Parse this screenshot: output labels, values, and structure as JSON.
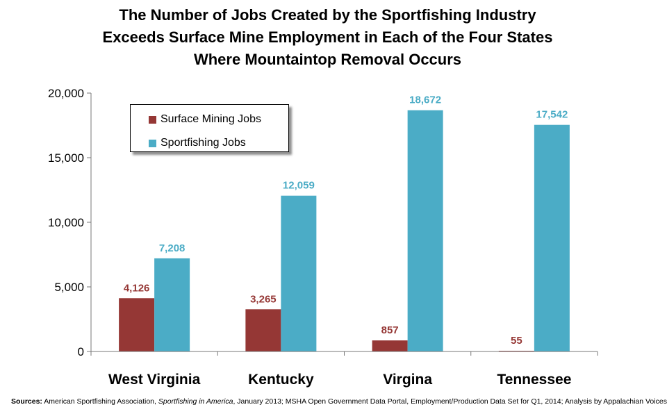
{
  "title_lines": [
    "The Number of Jobs Created by the Sportfishing Industry",
    "Exceeds Surface Mine Employment in Each of the Four States",
    "Where Mountaintop Removal Occurs"
  ],
  "colors": {
    "mining": "#953735",
    "sportfishing": "#4bacc6"
  },
  "chart_data": {
    "type": "bar",
    "categories": [
      "West Virginia",
      "Kentucky",
      "Virgina",
      "Tennessee"
    ],
    "series": [
      {
        "name": "Surface Mining Jobs",
        "values": [
          4126,
          3265,
          857,
          55
        ],
        "labels": [
          "4,126",
          "3,265",
          "857",
          "55"
        ]
      },
      {
        "name": "Sportfishing Jobs",
        "values": [
          7208,
          12059,
          18672,
          17542
        ],
        "labels": [
          "7,208",
          "12,059",
          "18,672",
          "17,542"
        ]
      }
    ],
    "ylim": [
      0,
      20000
    ],
    "yticks": [
      0,
      5000,
      10000,
      15000,
      20000
    ],
    "ytick_labels": [
      "0",
      "5,000",
      "10,000",
      "15,000",
      "20,000"
    ],
    "legend_position": "top-left",
    "grid": false
  },
  "footer": {
    "label": "Sources:",
    "part1": " American Sportfishing Association, ",
    "italic": "Sportfishing in America",
    "part2": ", January 2013; MSHA Open Government Data Portal, Employment/Production Data Set for Q1, 2014; Analysis by Appalachian Voices"
  }
}
